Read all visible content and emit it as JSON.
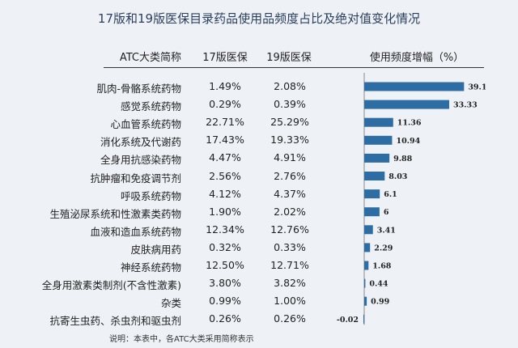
{
  "title": "17版和19版医保目录药品使用品频度占比及绝对值变化情况",
  "headers": [
    "ATC大类简称",
    "17版医保",
    "19版医保",
    "使用频度增幅（%）"
  ],
  "rows": [
    {
      "name": "肌肉-骨骼系统药物",
      "v17": "1.49%",
      "v19": "2.08%"
    },
    {
      "name": "感觉系统药物",
      "v17": "0.29%",
      "v19": "0.39%"
    },
    {
      "name": "心血管系统药物",
      "v17": "22.71%",
      "v19": "25.29%"
    },
    {
      "name": "消化系统及代谢药",
      "v17": "17.43%",
      "v19": "19.33%"
    },
    {
      "name": "全身用抗感染药物",
      "v17": "4.47%",
      "v19": "4.91%"
    },
    {
      "name": "抗肿瘤和免疫调节剂",
      "v17": "2.56%",
      "v19": "2.76%"
    },
    {
      "name": "呼吸系统药物",
      "v17": "4.12%",
      "v19": "4.37%"
    },
    {
      "name": "生殖泌尿系统和性激素类药物",
      "v17": "1.90%",
      "v19": "2.02%"
    },
    {
      "name": "血液和造血系统药物",
      "v17": "12.34%",
      "v19": "12.76%"
    },
    {
      "name": "皮肤病用药",
      "v17": "0.32%",
      "v19": "0.33%"
    },
    {
      "name": "神经系统药物",
      "v17": "12.50%",
      "v19": "12.71%"
    },
    {
      "name": "全身用激素类制剂(不含性激素)",
      "v17": "3.80%",
      "v19": "3.82%"
    },
    {
      "name": "杂类",
      "v17": "0.99%",
      "v19": "1.00%"
    },
    {
      "name": "抗寄生虫药、杀虫剂和驱虫剂",
      "v17": "0.26%",
      "v19": "0.26%"
    }
  ],
  "note": "说明：本表中，各ATC大类采用简称表示",
  "chart_data": {
    "type": "bar",
    "orientation": "horizontal",
    "categories": [
      "肌肉-骨骼系统药物",
      "感觉系统药物",
      "心血管系统药物",
      "消化系统及代谢药",
      "全身用抗感染药物",
      "抗肿瘤和免疫调节剂",
      "呼吸系统药物",
      "生殖泌尿系统和性激素类药物",
      "血液和造血系统药物",
      "皮肤病用药",
      "神经系统药物",
      "全身用激素类制剂(不含性激素)",
      "杂类",
      "抗寄生虫药、杀虫剂和驱虫剂"
    ],
    "values": [
      39.15,
      33.33,
      11.36,
      10.94,
      9.88,
      8.03,
      6.1,
      6,
      3.41,
      2.29,
      1.68,
      0.44,
      0.99,
      -0.02
    ],
    "labels": [
      "39.15",
      "33.33",
      "11.36",
      "10.94",
      "9.88",
      "8.03",
      "6.1",
      "6",
      "3.41",
      "2.29",
      "1.68",
      "0.44",
      "0.99",
      "-0.02"
    ],
    "xlim": [
      0,
      40
    ],
    "color": "#2e6da4",
    "grid": false
  }
}
